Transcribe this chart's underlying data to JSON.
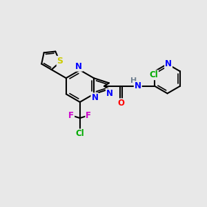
{
  "bg_color": "#e8e8e8",
  "bond_color": "#000000",
  "bond_width": 1.5,
  "atom_colors": {
    "N": "#0000ff",
    "O": "#ff0000",
    "S": "#cccc00",
    "Cl": "#00aa00",
    "F": "#cc00cc",
    "H": "#708090",
    "C": "#000000"
  },
  "font_size": 8.5,
  "fig_size": [
    3.0,
    3.0
  ],
  "dpi": 100
}
